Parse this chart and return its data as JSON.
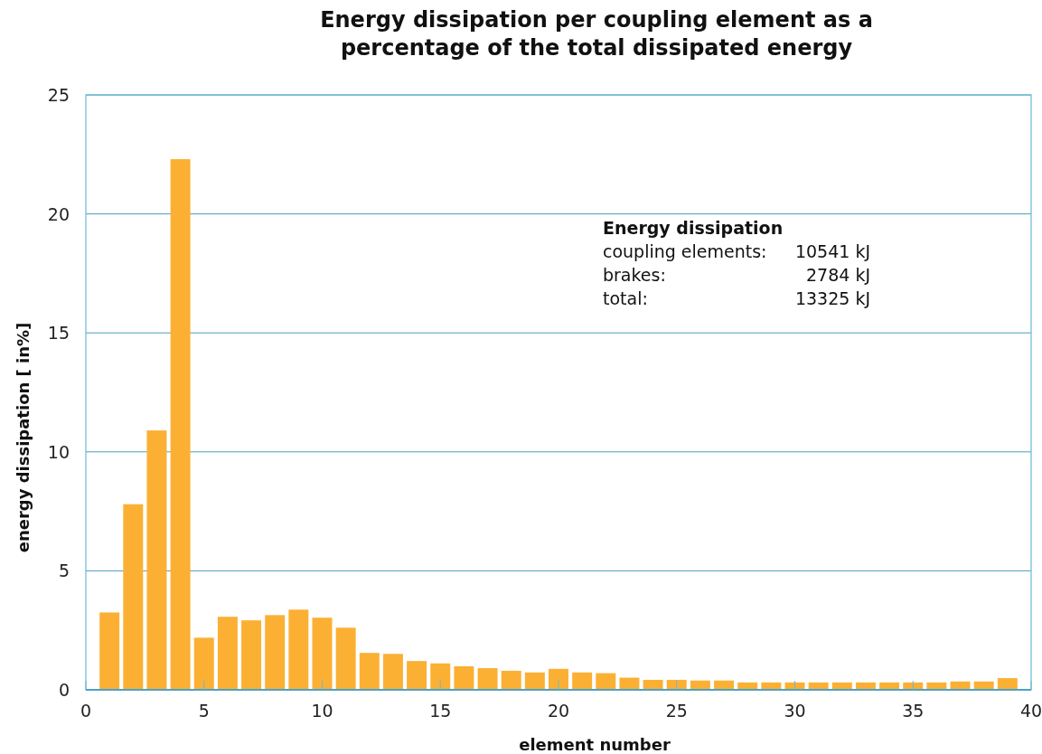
{
  "chart_data": {
    "type": "bar",
    "title": "Energy dissipation per coupling element as a percentage of the total dissipated energy",
    "xlabel": "element number",
    "ylabel": "energy dissipation [ in%]",
    "x": [
      1,
      2,
      3,
      4,
      5,
      6,
      7,
      8,
      9,
      10,
      11,
      12,
      13,
      14,
      15,
      16,
      17,
      18,
      19,
      20,
      21,
      22,
      23,
      24,
      25,
      26,
      27,
      28,
      29,
      30,
      31,
      32,
      33,
      34,
      35,
      36,
      37,
      38,
      39
    ],
    "values": [
      3.25,
      7.8,
      10.9,
      22.3,
      2.19,
      3.07,
      2.92,
      3.14,
      3.37,
      3.03,
      2.61,
      1.55,
      1.51,
      1.21,
      1.11,
      0.99,
      0.91,
      0.8,
      0.73,
      0.88,
      0.73,
      0.7,
      0.51,
      0.42,
      0.42,
      0.39,
      0.39,
      0.31,
      0.31,
      0.31,
      0.31,
      0.31,
      0.31,
      0.31,
      0.31,
      0.31,
      0.35,
      0.35,
      0.49
    ],
    "color": "#fbb034",
    "xlim": [
      0,
      40
    ],
    "xticks": [
      0,
      5,
      10,
      15,
      20,
      25,
      30,
      35,
      40
    ],
    "ylim": [
      0,
      25
    ],
    "yticks": [
      0,
      5,
      10,
      15,
      20,
      25
    ],
    "grid": "y",
    "annotations": [
      "Energy dissipation",
      "coupling elements:",
      "10541 kJ",
      "brakes:",
      "2784 kJ",
      "total:",
      "13325 kJ"
    ]
  }
}
